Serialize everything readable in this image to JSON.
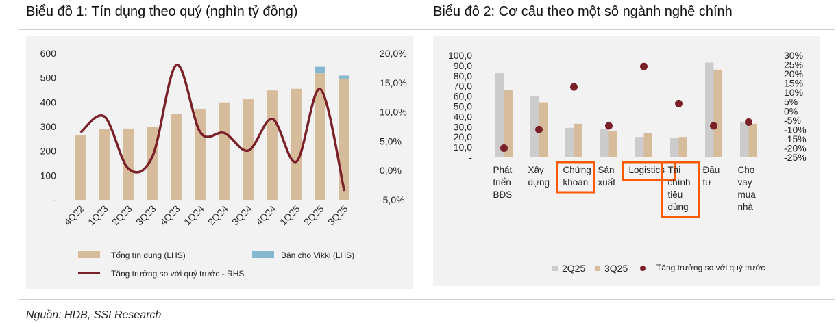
{
  "titles": {
    "chart1": "Biểu đồ 1: Tín dụng theo quý (nghìn tỷ đồng)",
    "chart2": "Biểu đồ 2: Cơ cấu theo một số ngành nghề chính"
  },
  "source": "Nguồn: HDB, SSI Research",
  "colors": {
    "tan": "#d7bc9c",
    "blue": "#85b7d1",
    "maroon": "#7a2028",
    "gray": "#cccccc",
    "highlight": "#ff5a00"
  },
  "chart_data": [
    {
      "type": "bar",
      "title": "Biểu đồ 1: Tín dụng theo quý (nghìn tỷ đồng)",
      "categories": [
        "4Q22",
        "1Q23",
        "2Q23",
        "3Q23",
        "4Q23",
        "1Q24",
        "2Q24",
        "3Q24",
        "4Q24",
        "1Q25",
        "2Q25",
        "3Q25"
      ],
      "series": [
        {
          "name": "Tổng tín dụng (LHS)",
          "kind": "bar",
          "axis": "left",
          "values": [
            265,
            290,
            292,
            298,
            352,
            373,
            399,
            412,
            448,
            455,
            518,
            497
          ]
        },
        {
          "name": "Bán cho Vikki (LHS)",
          "kind": "bar-stacked",
          "axis": "left",
          "values": [
            0,
            0,
            0,
            0,
            0,
            0,
            0,
            0,
            0,
            0,
            27,
            12
          ]
        },
        {
          "name": "Tăng trưởng so với quý trước - RHS",
          "kind": "line",
          "axis": "right",
          "values": [
            6.5,
            9.2,
            0.3,
            2.4,
            18.0,
            6.5,
            6.4,
            3.4,
            8.8,
            1.5,
            13.9,
            -3.5
          ]
        }
      ],
      "yleft": {
        "min": 0,
        "max": 600,
        "ticks": [
          "-",
          "100",
          "200",
          "300",
          "400",
          "500",
          "600"
        ]
      },
      "yright": {
        "min": -5,
        "max": 20,
        "ticks": [
          "-5,0%",
          "0,0%",
          "5,0%",
          "10,0%",
          "15,0%",
          "20,0%"
        ]
      },
      "legend": {
        "total": "Tổng tín dụng (LHS)",
        "vikki": "Bán cho Vikki (LHS)",
        "growth": "Tăng trưởng so với quý trước - RHS"
      }
    },
    {
      "type": "bar",
      "title": "Biểu đồ 2: Cơ cấu theo một số ngành nghề chính",
      "categories": [
        [
          "Phát",
          "triển",
          "BĐS"
        ],
        [
          "Xây",
          "dựng"
        ],
        [
          "Chứng",
          "khoán"
        ],
        [
          "Sản",
          "xuất"
        ],
        [
          "Logistics"
        ],
        [
          "Tài",
          "chính",
          "tiêu",
          "dùng"
        ],
        [
          "Đầu",
          "tư"
        ],
        [
          "Cho",
          "vay",
          "mua",
          "nhà"
        ]
      ],
      "highlighted": [
        2,
        4,
        5
      ],
      "series": [
        {
          "name": "2Q25",
          "kind": "bar",
          "axis": "left",
          "values": [
            83,
            60,
            29,
            28,
            20,
            19,
            93,
            35
          ]
        },
        {
          "name": "3Q25",
          "kind": "bar",
          "axis": "left",
          "values": [
            66,
            54,
            33,
            26,
            24,
            20,
            86,
            33
          ]
        },
        {
          "name": "Tăng trưởng so với quý trước",
          "kind": "scatter",
          "axis": "right",
          "values": [
            -20,
            -10,
            13,
            -8,
            24,
            4,
            -8,
            -6
          ]
        }
      ],
      "yleft": {
        "min": 0,
        "max": 100,
        "ticks": [
          "-",
          "10,0",
          "20,0",
          "30,0",
          "40,0",
          "50,0",
          "60,0",
          "70,0",
          "80,0",
          "90,0",
          "100,0"
        ]
      },
      "yright": {
        "min": -25,
        "max": 30,
        "ticks": [
          "-25%",
          "-20%",
          "-15%",
          "-10%",
          "-5%",
          "0%",
          "5%",
          "10%",
          "15%",
          "20%",
          "25%",
          "30%"
        ]
      },
      "legend": {
        "s1": "2Q25",
        "s2": "3Q25",
        "s3": "Tăng trưởng so với quý trước"
      }
    }
  ]
}
